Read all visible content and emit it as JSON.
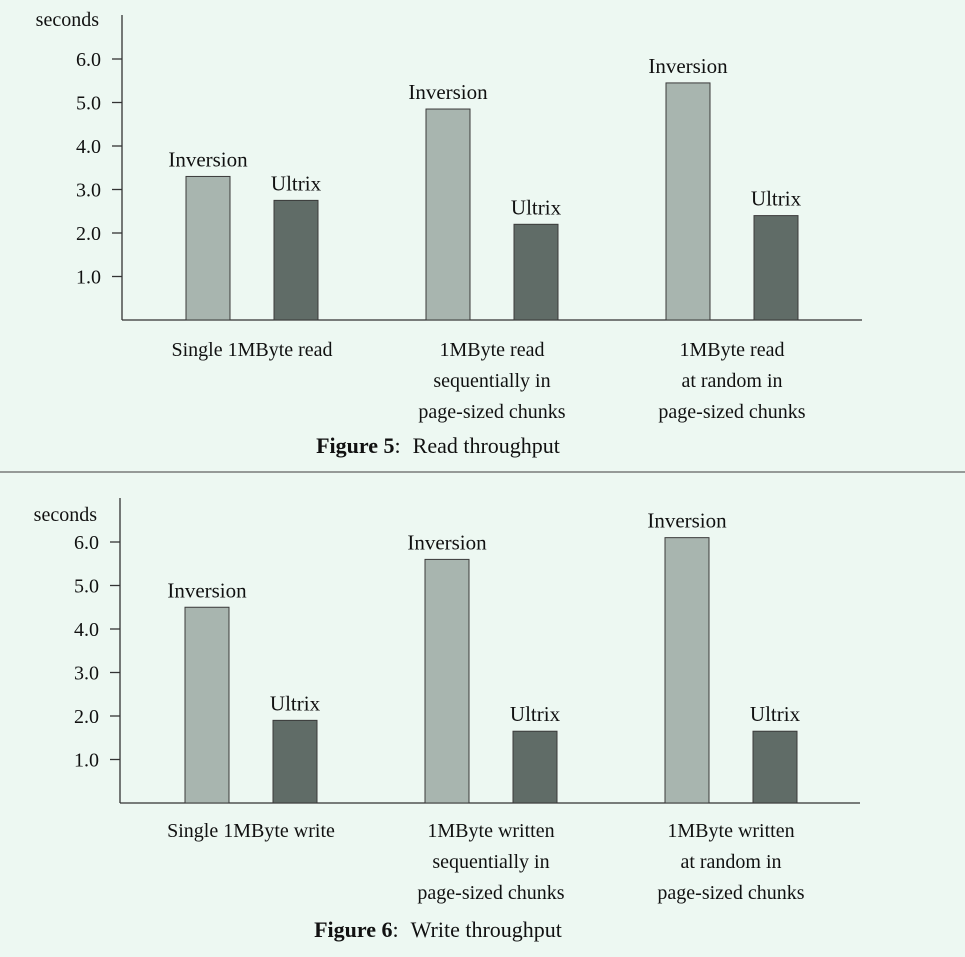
{
  "palette": {
    "background": "#edf8f2",
    "inversion": "#a8b5af",
    "ultrix": "#606c67",
    "axis": "#333333",
    "separator": "#7a7a7a"
  },
  "chart_data": [
    {
      "type": "bar",
      "figure_label": "Figure 5",
      "caption_separator": ":",
      "caption_text": "Read throughput",
      "ylabel": "seconds",
      "xlabel": "",
      "ylim": [
        0,
        7
      ],
      "yticks": [
        "1.0",
        "2.0",
        "3.0",
        "4.0",
        "5.0",
        "6.0"
      ],
      "legend": "none",
      "grid": false,
      "categories": [
        [
          "Single 1MByte read"
        ],
        [
          "1MByte read",
          "sequentially in",
          "page-sized chunks"
        ],
        [
          "1MByte read",
          "at random in",
          "page-sized chunks"
        ]
      ],
      "series": [
        {
          "name": "Inversion",
          "values": [
            3.3,
            4.85,
            5.45
          ]
        },
        {
          "name": "Ultrix",
          "values": [
            2.75,
            2.2,
            2.4
          ]
        }
      ]
    },
    {
      "type": "bar",
      "figure_label": "Figure 6",
      "caption_separator": ":",
      "caption_text": "Write throughput",
      "ylabel": "seconds",
      "xlabel": "",
      "ylim": [
        0,
        7
      ],
      "yticks": [
        "1.0",
        "2.0",
        "3.0",
        "4.0",
        "5.0",
        "6.0"
      ],
      "legend": "none",
      "grid": false,
      "categories": [
        [
          "Single 1MByte write"
        ],
        [
          "1MByte written",
          "sequentially in",
          "page-sized chunks"
        ],
        [
          "1MByte written",
          "at random in",
          "page-sized chunks"
        ]
      ],
      "series": [
        {
          "name": "Inversion",
          "values": [
            4.5,
            5.6,
            6.1
          ]
        },
        {
          "name": "Ultrix",
          "values": [
            1.9,
            1.65,
            1.65
          ]
        }
      ]
    }
  ]
}
